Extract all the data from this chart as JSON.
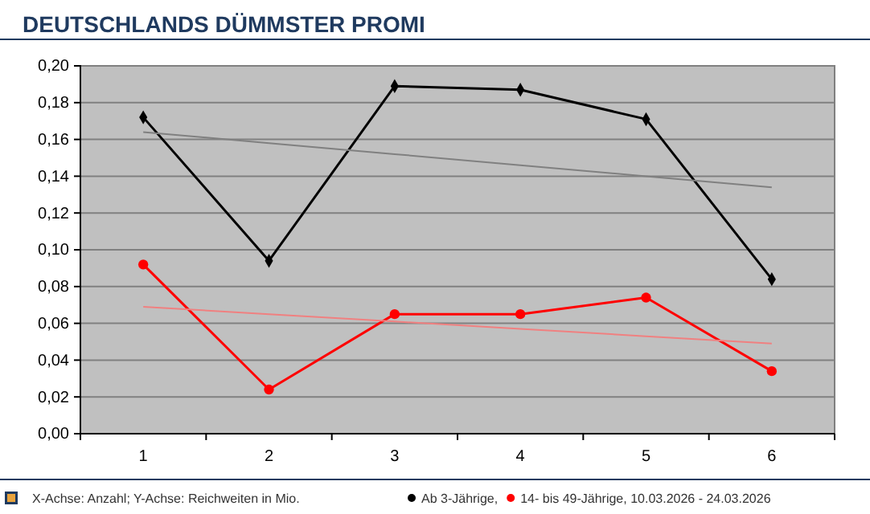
{
  "chart_data": {
    "type": "line",
    "title": "DEUTSCHLANDS DÜMMSTER PROMI",
    "categories": [
      "1",
      "2",
      "3",
      "4",
      "5",
      "6"
    ],
    "series": [
      {
        "name": "Ab 3-Jährige,",
        "color": "#000000",
        "marker": "diamond",
        "values": [
          0.172,
          0.094,
          0.189,
          0.187,
          0.171,
          0.084
        ]
      },
      {
        "name": "14- bis 49-Jährige, 10.03.2026 - 24.03.2026",
        "color": "#ff0000",
        "marker": "circle",
        "values": [
          0.092,
          0.024,
          0.065,
          0.065,
          0.074,
          0.034
        ]
      },
      {
        "color": "#808080",
        "marker": "none",
        "values": [
          0.164,
          0.158,
          0.152,
          0.146,
          0.14,
          0.134
        ]
      },
      {
        "color": "#f08080",
        "marker": "none",
        "values": [
          0.069,
          0.065,
          0.061,
          0.057,
          0.053,
          0.049
        ]
      }
    ],
    "ylim": [
      0,
      0.2
    ],
    "yticks": [
      {
        "value": 0,
        "label": "0,00"
      },
      {
        "value": 0.02,
        "label": "0,02"
      },
      {
        "value": 0.04,
        "label": "0,04"
      },
      {
        "value": 0.06,
        "label": "0,06"
      },
      {
        "value": 0.08,
        "label": "0,08"
      },
      {
        "value": 0.1,
        "label": "0,10"
      },
      {
        "value": 0.12,
        "label": "0,12"
      },
      {
        "value": 0.14,
        "label": "0,14"
      },
      {
        "value": 0.16,
        "label": "0,16"
      },
      {
        "value": 0.18,
        "label": "0,18"
      },
      {
        "value": 0.2,
        "label": "0,20"
      }
    ],
    "grid": "y",
    "legend": "bottom",
    "annotations": [
      "X-Achse: Anzahl; Y-Achse: Reichweiten in Mio."
    ]
  }
}
